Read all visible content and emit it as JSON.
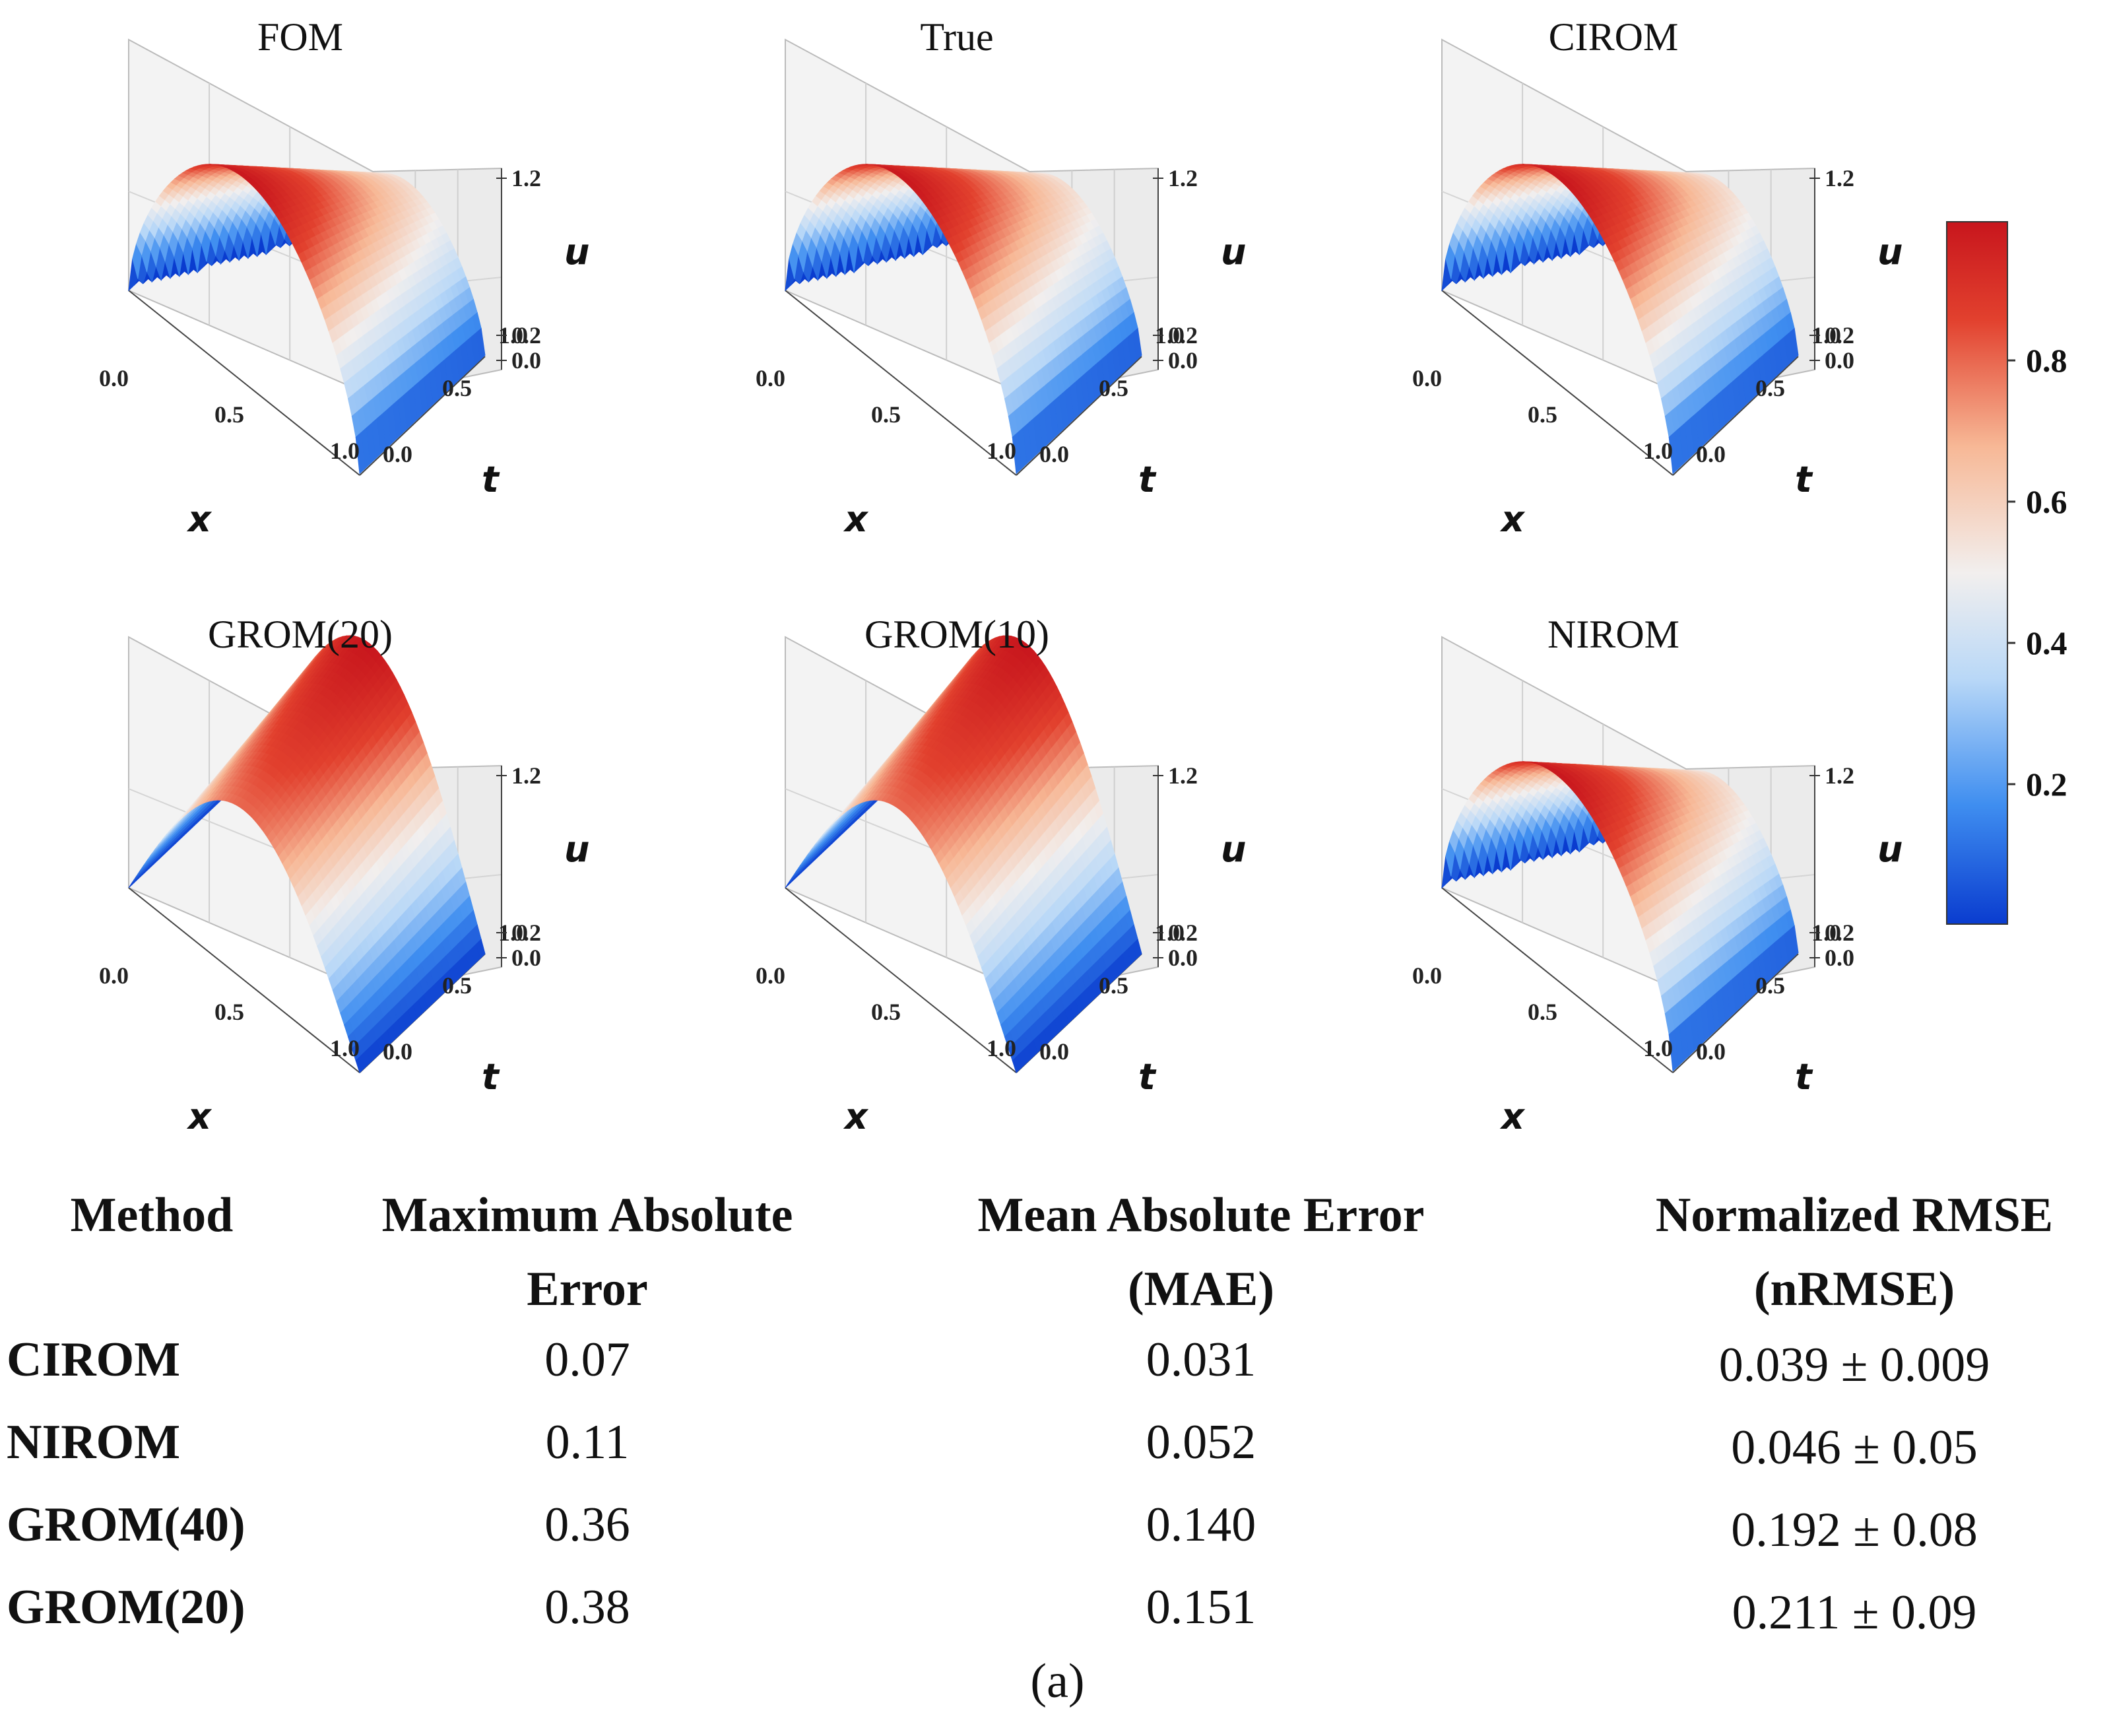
{
  "chart_data": {
    "type": "surface",
    "colorbar": {
      "ticks": [
        "0.2",
        "0.4",
        "0.6",
        "0.8"
      ],
      "colors": [
        "#0a3ccf",
        "#3f8ef0",
        "#b9d8f7",
        "#f2efee",
        "#f7b896",
        "#e2412e",
        "#c8161d"
      ]
    },
    "axes": {
      "x_label": "x",
      "t_label": "t",
      "u_label": "u",
      "x_ticks": [
        "0.0",
        "0.5",
        "1.0"
      ],
      "t_ticks": [
        "0.0",
        "0.5",
        "1.0"
      ],
      "u_ticks": [
        "0.0",
        "0.2",
        "1.2"
      ]
    },
    "panels": [
      {
        "title": "FOM",
        "variant": "front"
      },
      {
        "title": "True",
        "variant": "front"
      },
      {
        "title": "CIROM",
        "variant": "front"
      },
      {
        "title": "GROM(20)",
        "variant": "standing"
      },
      {
        "title": "GROM(10)",
        "variant": "standing"
      },
      {
        "title": "NIROM",
        "variant": "front"
      }
    ]
  },
  "table": {
    "headers": [
      [
        "Method"
      ],
      [
        "Maximum Absolute",
        "Error"
      ],
      [
        "Mean Absolute Error",
        "(MAE)"
      ],
      [
        "Normalized RMSE",
        "(nRMSE)"
      ]
    ],
    "rows": [
      [
        "CIROM",
        "0.07",
        "0.031",
        "0.039 ± 0.009"
      ],
      [
        "NIROM",
        "0.11",
        "0.052",
        "0.046 ± 0.05"
      ],
      [
        "GROM(40)",
        "0.36",
        "0.140",
        "0.192 ± 0.08"
      ],
      [
        "GROM(20)",
        "0.38",
        "0.151",
        "0.211 ± 0.09"
      ]
    ]
  },
  "caption": "(a)"
}
